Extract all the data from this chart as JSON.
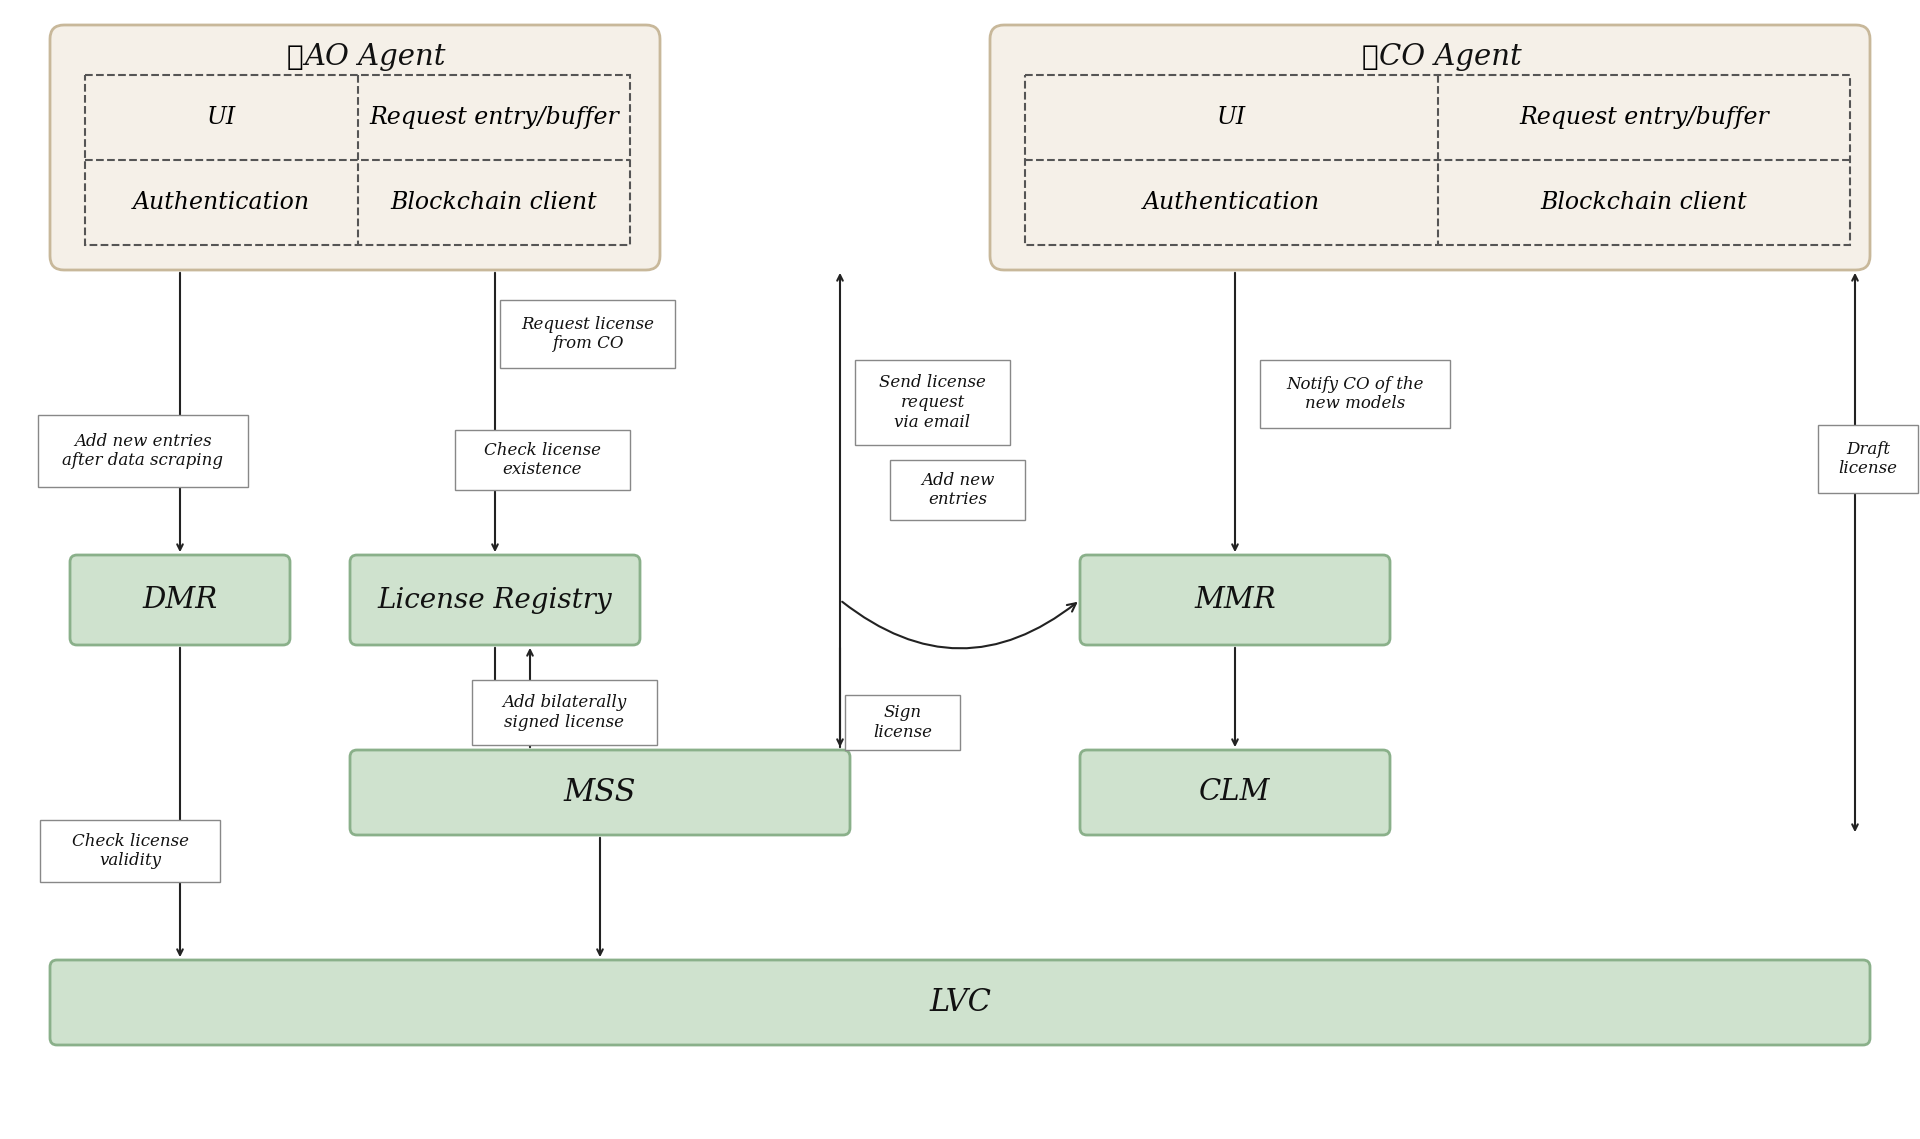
{
  "bg_color": "#ffffff",
  "agent_box_color": "#f5f0e8",
  "agent_box_edge": "#c8b89a",
  "module_box_color": "#cfe2ce",
  "module_box_edge": "#8ab08a",
  "dashed_box_edge": "#555555",
  "annotation_box_color": "#ffffff",
  "annotation_box_edge": "#888888",
  "arrow_color": "#222222",
  "text_color": "#111111",
  "AO_agent_label": "AO Agent",
  "CO_agent_label": "CO Agent",
  "UI_label": "UI",
  "auth_label": "Authentication",
  "req_buf_label": "Request entry/buffer",
  "bc_label": "Blockchain client",
  "DMR_label": "DMR",
  "LicReg_label": "License Registry",
  "MSS_label": "MSS",
  "MMR_label": "MMR",
  "CLM_label": "CLM",
  "LVC_label": "LVC",
  "ann1": "Add new entries\nafter data scraping",
  "ann2": "Request license\nfrom CO",
  "ann3": "Check license\nexistence",
  "ann4": "Send license\nrequest\nvia email",
  "ann5": "Add new\nentries",
  "ann6": "Notify CO of the\nnew models",
  "ann7": "Draft\nlicense",
  "ann8": "Add bilaterally\nsigned license",
  "ann9": "Sign\nlicense",
  "ann10": "Check license\nvalidity"
}
